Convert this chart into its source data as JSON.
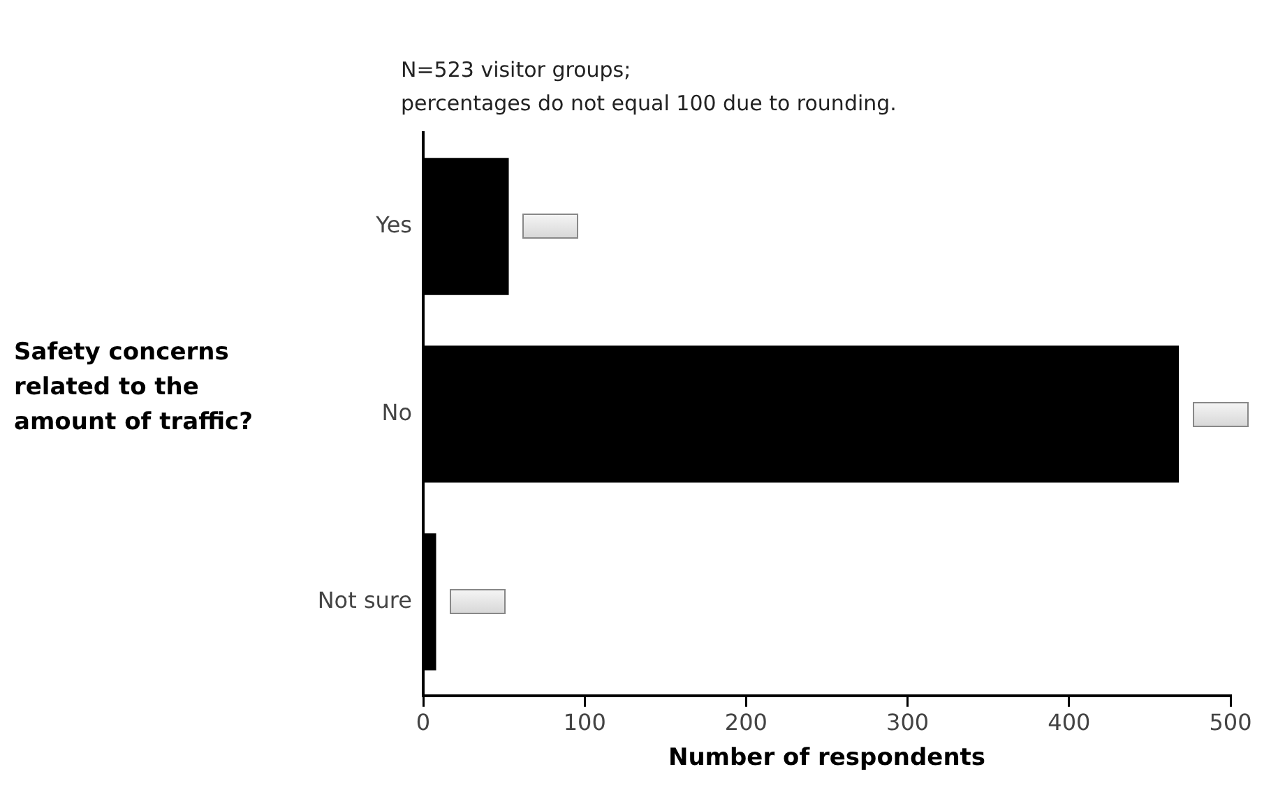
{
  "chart_data": {
    "type": "bar",
    "orientation": "horizontal",
    "title": "N=523 visitor groups;\npercentages do not equal 100 due to rounding.",
    "ylabel": "Safety concerns\nrelated to the\namount of traffic?",
    "xlabel": "Number of respondents",
    "categories": [
      "Yes",
      "No",
      "Not sure"
    ],
    "values": [
      53,
      468,
      8
    ],
    "color": "#000000",
    "xlim": [
      0,
      500
    ],
    "xticks": [
      0,
      100,
      200,
      300,
      400,
      500
    ],
    "grid": false,
    "legend": false
  }
}
